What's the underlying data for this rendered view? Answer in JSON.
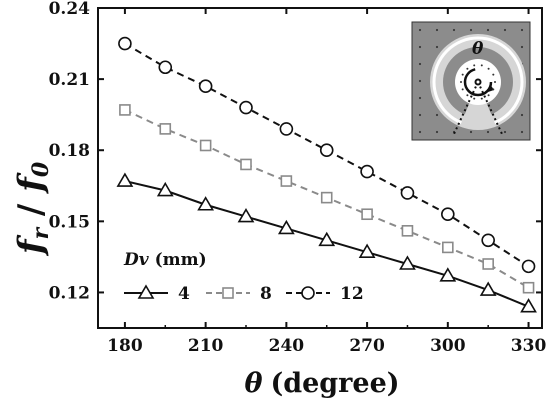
{
  "chart_data": {
    "type": "line",
    "xlabel": "θ (degree)",
    "xlabel_symbol": "θ",
    "xlabel_unit": "(degree)",
    "ylabel": "fr / f0",
    "ylabel_parts": {
      "f1": "f",
      "sub1": "r",
      "slash": " / ",
      "f2": "f",
      "sub2": "0"
    },
    "xlim": [
      170,
      335
    ],
    "ylim": [
      0.105,
      0.24
    ],
    "xticks": [
      180,
      210,
      240,
      270,
      300,
      330
    ],
    "yticks": [
      0.12,
      0.15,
      0.18,
      0.21,
      0.24
    ],
    "ytick_labels": [
      "0.12",
      "0.15",
      "0.18",
      "0.21",
      "0.24"
    ],
    "x": [
      180,
      195,
      210,
      225,
      240,
      255,
      270,
      285,
      300,
      315,
      330
    ],
    "legend": {
      "title": "Dv (mm)",
      "title_symbol": "Dv",
      "title_unit": "(mm)",
      "placement": "bottom-left"
    },
    "series": [
      {
        "name": "4",
        "marker": "triangle",
        "line": "solid",
        "color": "#111111",
        "values": [
          0.167,
          0.163,
          0.157,
          0.152,
          0.147,
          0.142,
          0.137,
          0.132,
          0.127,
          0.121,
          0.114
        ]
      },
      {
        "name": "8",
        "marker": "square",
        "line": "dashed",
        "color": "#8a8a8a",
        "values": [
          0.197,
          0.189,
          0.182,
          0.174,
          0.167,
          0.16,
          0.153,
          0.146,
          0.139,
          0.132,
          0.122
        ]
      },
      {
        "name": "12",
        "marker": "circle",
        "line": "dashed",
        "color": "#111111",
        "values": [
          0.225,
          0.215,
          0.207,
          0.198,
          0.189,
          0.18,
          0.171,
          0.162,
          0.153,
          0.142,
          0.131
        ]
      }
    ],
    "inset": {
      "label": "θ"
    }
  }
}
